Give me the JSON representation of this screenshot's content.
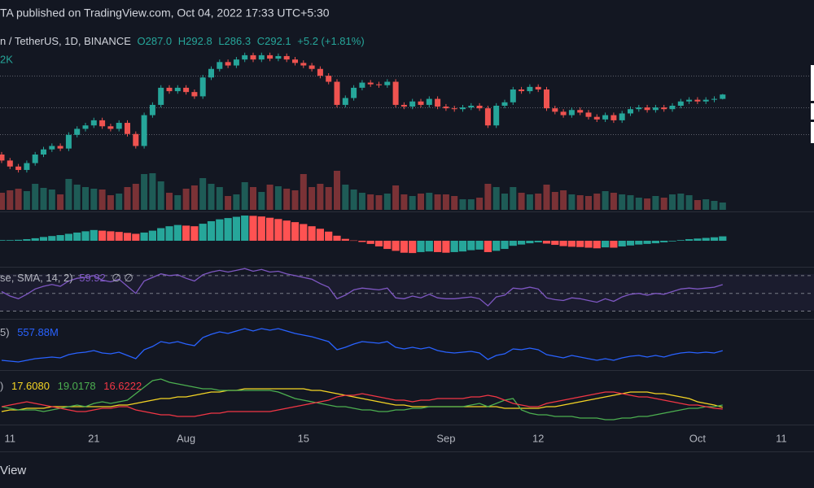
{
  "header": "TA published on TradingView.com, Oct 04, 2022 17:33 UTC+5:30",
  "footer": "View",
  "chart_data": [
    {
      "type": "candlestick",
      "symbol": "n / TetherUS, 1D, BINANCE",
      "ohlc_legend": [
        "O287.0",
        "H292.8",
        "L286.3",
        "C292.1",
        "+5.2 (+1.81%)"
      ],
      "categories": [
        null,
        "11",
        null,
        null,
        null,
        null,
        null,
        null,
        null,
        null,
        null,
        "21",
        null,
        null,
        null,
        null,
        null,
        null,
        null,
        null,
        null,
        null,
        "Aug",
        null,
        null,
        null,
        null,
        null,
        null,
        null,
        null,
        null,
        null,
        null,
        null,
        null,
        "15",
        null,
        null,
        null,
        null,
        null,
        null,
        null,
        null,
        null,
        null,
        null,
        null,
        null,
        null,
        null,
        null,
        "Sep",
        null,
        null,
        null,
        null,
        null,
        null,
        null,
        null,
        null,
        null,
        "12",
        null,
        null,
        null,
        null,
        null,
        null,
        null,
        null,
        null,
        null,
        null,
        null,
        null,
        null,
        null,
        null,
        null,
        null,
        "Oct",
        null,
        null,
        null,
        null,
        null,
        null,
        null,
        null,
        null,
        "11"
      ],
      "open": [
        222,
        215,
        208,
        204,
        212,
        222,
        228,
        232,
        229,
        245,
        252,
        256,
        262,
        255,
        252,
        259,
        246,
        232,
        268,
        280,
        300,
        296,
        300,
        295,
        290,
        312,
        322,
        330,
        326,
        333,
        338,
        333,
        338,
        334,
        337,
        333,
        329,
        326,
        322,
        314,
        307,
        280,
        288,
        300,
        306,
        304,
        303,
        307,
        280,
        278,
        284,
        280,
        287,
        278,
        276,
        275,
        277,
        279,
        276,
        256,
        279,
        283,
        298,
        296,
        301,
        298,
        276,
        272,
        268,
        274,
        271,
        266,
        263,
        268,
        262,
        270,
        275,
        277,
        274,
        277,
        275,
        279,
        284,
        286,
        284,
        286,
        287.0,
        null,
        null,
        null,
        null,
        null,
        null,
        null
      ],
      "high": [
        225,
        218,
        211,
        215,
        225,
        231,
        235,
        235,
        248,
        255,
        259,
        265,
        265,
        258,
        262,
        262,
        249,
        271,
        283,
        303,
        303,
        303,
        303,
        298,
        315,
        325,
        333,
        333,
        336,
        341,
        341,
        341,
        341,
        340,
        340,
        336,
        332,
        329,
        325,
        317,
        310,
        291,
        303,
        309,
        309,
        307,
        310,
        310,
        283,
        287,
        287,
        290,
        290,
        281,
        279,
        280,
        282,
        282,
        279,
        282,
        286,
        301,
        301,
        304,
        304,
        301,
        279,
        275,
        277,
        277,
        274,
        269,
        271,
        271,
        273,
        278,
        280,
        280,
        280,
        280,
        282,
        287,
        289,
        289,
        289,
        290,
        292.8,
        null,
        null,
        null,
        null,
        null,
        null,
        null
      ],
      "low": [
        212,
        205,
        201,
        201,
        209,
        219,
        225,
        226,
        226,
        242,
        249,
        253,
        252,
        249,
        249,
        243,
        229,
        229,
        265,
        277,
        293,
        293,
        292,
        287,
        287,
        309,
        319,
        323,
        323,
        330,
        330,
        330,
        331,
        331,
        330,
        326,
        323,
        319,
        311,
        304,
        277,
        277,
        285,
        297,
        301,
        300,
        300,
        277,
        275,
        275,
        277,
        277,
        275,
        273,
        272,
        272,
        274,
        273,
        253,
        253,
        276,
        280,
        293,
        293,
        295,
        273,
        269,
        265,
        265,
        268,
        263,
        260,
        260,
        259,
        259,
        267,
        272,
        271,
        271,
        272,
        272,
        276,
        281,
        281,
        281,
        283,
        286.3,
        null,
        null,
        null,
        null,
        null,
        null,
        null
      ],
      "close": [
        215,
        208,
        204,
        212,
        222,
        228,
        232,
        229,
        245,
        252,
        256,
        262,
        255,
        252,
        259,
        246,
        232,
        268,
        280,
        300,
        296,
        300,
        295,
        290,
        312,
        322,
        330,
        326,
        333,
        338,
        333,
        338,
        334,
        337,
        333,
        329,
        326,
        322,
        314,
        307,
        280,
        288,
        300,
        306,
        304,
        303,
        307,
        280,
        278,
        284,
        280,
        287,
        278,
        276,
        275,
        277,
        279,
        276,
        256,
        279,
        283,
        298,
        296,
        301,
        298,
        276,
        272,
        268,
        274,
        271,
        266,
        263,
        268,
        262,
        270,
        275,
        277,
        274,
        277,
        275,
        279,
        284,
        286,
        284,
        286,
        287,
        292.1,
        null,
        null,
        null,
        null,
        null,
        null,
        null
      ],
      "ylim": [
        165,
        355
      ],
      "up_color": "#26a69a",
      "down_color": "#ef5350",
      "volume": {
        "legend": "2K",
        "values": [
          420,
          480,
          520,
          460,
          640,
          540,
          500,
          380,
          760,
          620,
          560,
          520,
          500,
          360,
          400,
          560,
          640,
          880,
          900,
          700,
          420,
          360,
          520,
          600,
          780,
          640,
          560,
          340,
          380,
          680,
          560,
          440,
          620,
          580,
          520,
          480,
          880,
          560,
          640,
          560,
          960,
          620,
          500,
          420,
          380,
          360,
          400,
          600,
          380,
          340,
          400,
          420,
          380,
          380,
          340,
          260,
          260,
          300,
          640,
          560,
          400,
          560,
          420,
          380,
          400,
          620,
          440,
          480,
          380,
          360,
          340,
          400,
          460,
          420,
          380,
          360,
          300,
          280,
          340,
          300,
          380,
          400,
          360,
          240,
          260,
          220,
          180,
          null,
          null,
          null,
          null,
          null,
          null,
          null
        ],
        "ylim": [
          0,
          1000
        ],
        "up_color": "#1e5b56",
        "down_color": "#7a3236"
      }
    },
    {
      "type": "bar",
      "values": [
        0.2,
        0.2,
        0.3,
        0.5,
        0.8,
        1.2,
        1.5,
        1.8,
        2.2,
        2.6,
        3.0,
        3.4,
        3.2,
        3.0,
        2.8,
        2.5,
        2.2,
        2.6,
        3.2,
        4.0,
        4.6,
        5.0,
        4.8,
        4.6,
        5.4,
        6.2,
        6.8,
        7.2,
        7.6,
        8.0,
        7.9,
        7.7,
        7.3,
        6.9,
        6.4,
        5.9,
        5.3,
        4.6,
        3.8,
        2.9,
        1.6,
        0.6,
        0.1,
        -0.4,
        -1.0,
        -1.8,
        -2.6,
        -3.2,
        -3.8,
        -3.9,
        -3.6,
        -3.4,
        -3.6,
        -3.8,
        -3.6,
        -3.4,
        -3.0,
        -2.8,
        -3.6,
        -3.2,
        -2.6,
        -1.6,
        -1.2,
        -0.8,
        -0.5,
        -0.9,
        -1.3,
        -1.7,
        -1.9,
        -2.0,
        -2.2,
        -2.4,
        -2.1,
        -2.2,
        -1.8,
        -1.5,
        -1.2,
        -1.0,
        -0.8,
        -0.5,
        -0.2,
        0.2,
        0.5,
        0.7,
        0.9,
        1.1,
        1.4,
        null,
        null,
        null,
        null,
        null,
        null,
        null
      ],
      "ylim": [
        -8,
        8
      ],
      "up_color": "#26a69a",
      "down_color": "#ff5252"
    },
    {
      "type": "line",
      "legend": "se, SMA, 14, 2)",
      "legend_tail": "∅  ∅",
      "series": [
        {
          "color": "#7e57c2",
          "value_label": "59.92",
          "values": [
            52,
            47,
            44,
            49,
            55,
            58,
            60,
            58,
            64,
            67,
            68,
            70,
            65,
            63,
            66,
            58,
            50,
            64,
            68,
            72,
            70,
            71,
            67,
            64,
            71,
            74,
            76,
            74,
            76,
            78,
            75,
            77,
            74,
            75,
            72,
            70,
            68,
            66,
            61,
            57,
            44,
            48,
            54,
            56,
            55,
            54,
            56,
            45,
            44,
            47,
            45,
            49,
            45,
            44,
            44,
            45,
            46,
            44,
            36,
            46,
            48,
            56,
            55,
            57,
            55,
            45,
            43,
            42,
            45,
            44,
            42,
            40,
            44,
            41,
            46,
            49,
            50,
            48,
            50,
            49,
            52,
            55,
            56,
            55,
            56,
            57,
            59.92,
            null,
            null,
            null,
            null,
            null,
            null,
            null
          ]
        }
      ],
      "ylim": [
        25,
        80
      ],
      "levels": [
        70,
        50,
        30
      ]
    },
    {
      "type": "line",
      "legend": "5)",
      "series": [
        {
          "color": "#2962ff",
          "value_label": "557.88M",
          "values": [
            534,
            532,
            530,
            534,
            538,
            540,
            542,
            540,
            548,
            552,
            554,
            558,
            552,
            550,
            554,
            546,
            538,
            560,
            568,
            580,
            576,
            580,
            574,
            570,
            590,
            598,
            604,
            600,
            606,
            612,
            606,
            612,
            608,
            612,
            606,
            600,
            596,
            592,
            586,
            580,
            560,
            566,
            574,
            580,
            578,
            576,
            580,
            566,
            562,
            566,
            562,
            566,
            558,
            554,
            552,
            554,
            556,
            552,
            536,
            546,
            550,
            562,
            560,
            564,
            560,
            548,
            544,
            540,
            546,
            542,
            538,
            534,
            538,
            534,
            540,
            544,
            546,
            542,
            546,
            542,
            548,
            552,
            554,
            552,
            554,
            552,
            557.88,
            null,
            null,
            null,
            null,
            null,
            null,
            null
          ]
        }
      ],
      "ylim": [
        520,
        630
      ]
    },
    {
      "type": "line",
      "legend": ")",
      "series": [
        {
          "color": "#f5d524",
          "value_label": "17.6080",
          "values": [
            15,
            16,
            16,
            17,
            17,
            17,
            18,
            18,
            18,
            18,
            18,
            18,
            18,
            18,
            19,
            19,
            20,
            21,
            22,
            23,
            23,
            24,
            24,
            25,
            26,
            27,
            27,
            28,
            28,
            29,
            29,
            29,
            29,
            29,
            29,
            29,
            29,
            28,
            28,
            27,
            26,
            25,
            24,
            23,
            22,
            21,
            20,
            19,
            19,
            18,
            18,
            18,
            18,
            18,
            18,
            18,
            18,
            18,
            18,
            18,
            17,
            17,
            17,
            17,
            17,
            18,
            18,
            19,
            20,
            21,
            22,
            23,
            24,
            25,
            26,
            27,
            27,
            27,
            26,
            26,
            25,
            24,
            23,
            21,
            20,
            19,
            17.608,
            null,
            null,
            null,
            null,
            null,
            null,
            null
          ]
        },
        {
          "color": "#4caf50",
          "value_label": "19.0178",
          "values": [
            18,
            17,
            16,
            16,
            16,
            15,
            16,
            17,
            18,
            19,
            18,
            20,
            21,
            20,
            21,
            22,
            26,
            30,
            34,
            35,
            33,
            32,
            31,
            30,
            29,
            29,
            28,
            28,
            28,
            28,
            28,
            28,
            28,
            27,
            25,
            23,
            22,
            21,
            20,
            19,
            18,
            18,
            17,
            16,
            16,
            15,
            15,
            16,
            16,
            17,
            17,
            18,
            18,
            18,
            18,
            18,
            19,
            20,
            18,
            20,
            22,
            23,
            16,
            14,
            13,
            13,
            12,
            12,
            12,
            11,
            11,
            11,
            10,
            10,
            11,
            11,
            12,
            12,
            13,
            14,
            15,
            16,
            17,
            17,
            18,
            18,
            19.0178,
            null,
            null,
            null,
            null,
            null,
            null,
            null
          ]
        },
        {
          "color": "#f23645",
          "value_label": "16.6222",
          "values": [
            18,
            19,
            20,
            21,
            20,
            19,
            18,
            17,
            16,
            15,
            15,
            16,
            17,
            17,
            18,
            18,
            16,
            15,
            14,
            13,
            13,
            12,
            12,
            12,
            13,
            14,
            14,
            15,
            15,
            15,
            15,
            15,
            15,
            16,
            17,
            18,
            19,
            20,
            21,
            22,
            24,
            25,
            25,
            26,
            25,
            24,
            23,
            22,
            22,
            21,
            22,
            22,
            23,
            23,
            23,
            23,
            24,
            24,
            25,
            24,
            22,
            20,
            19,
            18,
            18,
            20,
            21,
            22,
            23,
            24,
            25,
            26,
            27,
            27,
            26,
            25,
            24,
            24,
            23,
            22,
            21,
            20,
            19,
            19,
            18,
            17,
            16.6222,
            null,
            null,
            null,
            null,
            null,
            null,
            null
          ]
        }
      ],
      "ylim": [
        9,
        39
      ]
    }
  ]
}
